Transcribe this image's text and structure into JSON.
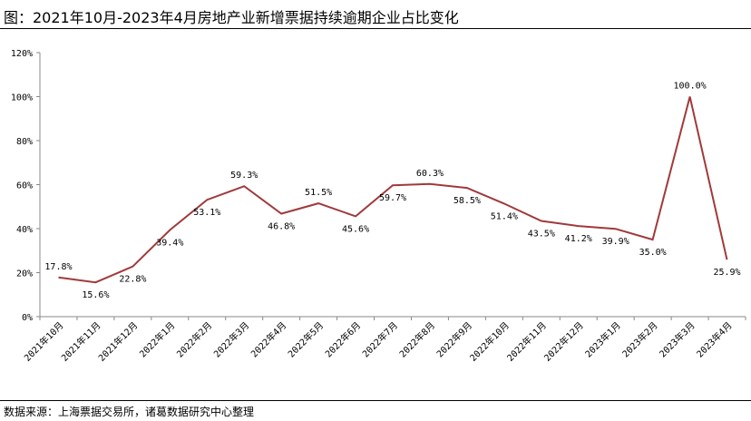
{
  "title": "图：2021年10月-2023年4月房地产业新增票据持续逾期企业占比变化",
  "source": "数据来源：上海票据交易所，诸葛数据研究中心整理",
  "chart_data": {
    "type": "line",
    "title": "",
    "xlabel": "",
    "ylabel": "",
    "ylim": [
      0,
      120
    ],
    "yticks": [
      "0%",
      "20%",
      "40%",
      "60%",
      "80%",
      "100%",
      "120%"
    ],
    "yticks_values": [
      0,
      20,
      40,
      60,
      80,
      100,
      120
    ],
    "grid": false,
    "legend": "none",
    "line_color": "#A0393A",
    "categories": [
      "2021年10月",
      "2021年11月",
      "2021年12月",
      "2022年1月",
      "2022年2月",
      "2022年3月",
      "2022年4月",
      "2022年5月",
      "2022年6月",
      "2022年7月",
      "2022年8月",
      "2022年9月",
      "2022年10月",
      "2022年11月",
      "2022年12月",
      "2023年1月",
      "2023年2月",
      "2023年3月",
      "2023年4月"
    ],
    "series": [
      {
        "values": [
          17.8,
          15.6,
          22.8,
          39.4,
          53.1,
          59.3,
          46.8,
          51.5,
          45.6,
          59.7,
          60.3,
          58.5,
          51.4,
          43.5,
          41.2,
          39.9,
          35.0,
          100.0,
          25.9
        ],
        "labels": [
          "17.8%",
          "15.6%",
          "22.8%",
          "39.4%",
          "53.1%",
          "59.3%",
          "46.8%",
          "51.5%",
          "45.6%",
          "59.7%",
          "60.3%",
          "58.5%",
          "51.4%",
          "43.5%",
          "41.2%",
          "39.9%",
          "35.0%",
          "100.0%",
          "25.9%"
        ]
      }
    ]
  }
}
